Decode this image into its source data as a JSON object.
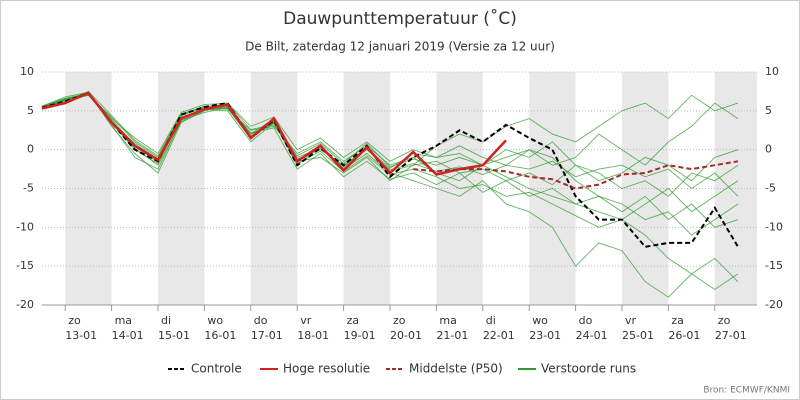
{
  "chart_data": {
    "type": "line",
    "title": "Dauwpunttemperatuur (˚C)",
    "subtitle": "De Bilt, zaterdag 12 januari 2019 (Versie za 12 uur)",
    "source": "Bron: ECMWF/KNMI",
    "categories": [
      null,
      "13-01",
      null,
      "14-01",
      null,
      "15-01",
      null,
      "16-01",
      null,
      "17-01",
      null,
      "18-01",
      null,
      "19-01",
      null,
      "20-01",
      null,
      "21-01",
      null,
      "22-01",
      null,
      "23-01",
      null,
      "24-01",
      null,
      "25-01",
      null,
      "26-01",
      null,
      "27-01",
      null
    ],
    "weekdays": [
      null,
      "zo",
      null,
      "ma",
      null,
      "di",
      null,
      "wo",
      null,
      "do",
      null,
      "vr",
      null,
      "za",
      null,
      "zo",
      null,
      "ma",
      null,
      "di",
      null,
      "wo",
      null,
      "do",
      null,
      "vr",
      null,
      "za",
      null,
      "zo",
      null
    ],
    "ylim": [
      -20,
      10
    ],
    "yticks": [
      -20,
      -15,
      -10,
      -5,
      0,
      5,
      10
    ],
    "grid": true,
    "legend": "bottom",
    "ensemble": {
      "name": "Verstoorde runs",
      "color": "#2f9a2f",
      "members": [
        [
          5.4,
          6.3,
          7.0,
          4.2,
          1.0,
          -1.0,
          4.5,
          5.6,
          5.2,
          2.5,
          3.0,
          -0.5,
          1.0,
          -1.5,
          0.5,
          -2.0,
          -1.0,
          -3.0,
          -4.0,
          -2.0,
          -3.5,
          -5.0,
          -6.0,
          -7.0,
          -8.0,
          -9.0,
          -11.0,
          -14.0,
          -16.0,
          -18.0,
          -16.0
        ],
        [
          5.6,
          6.8,
          7.4,
          3.0,
          -0.5,
          -3.0,
          3.5,
          5.0,
          5.8,
          2.0,
          4.0,
          -1.5,
          -1.0,
          -3.0,
          -1.0,
          -4.0,
          -2.0,
          0.5,
          2.0,
          1.0,
          3.0,
          4.0,
          2.0,
          1.0,
          3.0,
          5.0,
          6.0,
          4.0,
          7.0,
          5.0,
          6.0
        ],
        [
          5.3,
          6.0,
          7.1,
          3.5,
          0.0,
          -1.8,
          4.2,
          5.2,
          5.0,
          1.0,
          3.5,
          -2.0,
          0.5,
          -2.5,
          -0.5,
          -3.0,
          -4.0,
          -5.0,
          -6.0,
          -4.0,
          -7.0,
          -8.0,
          -10.0,
          -15.0,
          -12.0,
          -13.0,
          -17.0,
          -19.0,
          -16.0,
          -14.0,
          -17.0
        ],
        [
          5.5,
          6.5,
          7.2,
          4.0,
          1.5,
          -0.5,
          4.8,
          5.8,
          6.0,
          3.0,
          4.2,
          0.0,
          1.5,
          -1.0,
          1.0,
          -1.5,
          0.0,
          -1.0,
          -0.5,
          -2.0,
          -1.0,
          0.0,
          -2.0,
          -1.0,
          2.0,
          0.0,
          -2.0,
          1.0,
          3.0,
          6.0,
          4.0
        ],
        [
          5.4,
          6.4,
          7.3,
          3.2,
          -1.0,
          -2.5,
          3.8,
          4.8,
          5.4,
          2.2,
          2.8,
          -2.5,
          -0.5,
          -3.5,
          -1.5,
          -3.8,
          -3.0,
          -4.5,
          -3.0,
          -5.5,
          -4.0,
          -6.0,
          -5.0,
          -7.0,
          -6.0,
          -8.0,
          -6.0,
          -9.0,
          -7.0,
          -10.0,
          -9.0
        ],
        [
          5.6,
          6.6,
          7.0,
          3.6,
          0.8,
          -1.2,
          4.4,
          5.4,
          5.6,
          1.8,
          3.6,
          -1.0,
          0.2,
          -2.2,
          0.3,
          -2.8,
          -2.0,
          -1.5,
          -3.0,
          -2.5,
          -4.0,
          -3.0,
          -4.5,
          -2.0,
          -3.0,
          -5.0,
          -4.0,
          -6.0,
          -3.0,
          -4.0,
          -2.0
        ],
        [
          5.5,
          6.2,
          7.5,
          4.4,
          1.2,
          -0.8,
          4.6,
          5.5,
          5.9,
          2.6,
          3.2,
          -0.8,
          0.8,
          -1.8,
          0.8,
          -2.2,
          -1.2,
          -2.0,
          -1.0,
          -2.0,
          0.0,
          -1.0,
          1.0,
          -2.0,
          -4.0,
          -3.0,
          -1.0,
          -2.0,
          -4.0,
          -1.0,
          0.0
        ],
        [
          5.3,
          6.4,
          7.2,
          3.4,
          0.2,
          -2.0,
          3.6,
          5.1,
          5.3,
          1.4,
          3.8,
          -1.8,
          -0.2,
          -2.8,
          -0.8,
          -3.2,
          -2.5,
          -3.5,
          -5.0,
          -4.5,
          -6.0,
          -5.5,
          -7.0,
          -8.5,
          -10.0,
          -9.0,
          -7.0,
          -5.0,
          -8.0,
          -6.0,
          -4.0
        ],
        [
          5.5,
          6.6,
          7.3,
          3.9,
          0.6,
          -1.4,
          4.0,
          5.3,
          5.5,
          2.0,
          3.4,
          -1.2,
          0.0,
          -2.0,
          0.0,
          -2.6,
          -1.8,
          -2.8,
          -2.2,
          -3.2,
          -2.0,
          -2.5,
          -1.5,
          -3.5,
          -2.5,
          -2.0,
          -3.5,
          -2.5,
          -5.0,
          -3.0,
          -6.0
        ],
        [
          5.4,
          6.5,
          7.1,
          3.7,
          0.4,
          -1.6,
          4.1,
          5.2,
          5.4,
          1.6,
          3.6,
          -1.4,
          0.4,
          -2.4,
          0.2,
          -2.4,
          -0.5,
          -1.0,
          0.5,
          -1.0,
          -2.0,
          0.0,
          -1.0,
          -4.0,
          -6.0,
          -7.0,
          -9.0,
          -8.0,
          -11.0,
          -9.0,
          -7.0
        ]
      ]
    },
    "series": [
      {
        "name": "Controle",
        "color": "#000000",
        "dash": true,
        "width": 2,
        "values": [
          5.4,
          6.2,
          7.3,
          3.5,
          0.0,
          -1.5,
          4.5,
          5.5,
          6.0,
          1.5,
          3.8,
          -2.0,
          0.2,
          -2.0,
          0.5,
          -3.5,
          -1.0,
          0.5,
          2.5,
          1.0,
          3.2,
          1.5,
          0.0,
          -6.0,
          -9.0,
          -9.0,
          -12.5,
          -12.0,
          -12.0,
          -7.5,
          -12.5
        ]
      },
      {
        "name": "Hoge resolutie",
        "color": "#d42020",
        "dash": false,
        "width": 2.5,
        "values": [
          5.3,
          6.0,
          7.3,
          3.5,
          0.5,
          -1.3,
          4.0,
          5.2,
          5.8,
          1.5,
          4.0,
          -1.5,
          0.5,
          -2.7,
          0.3,
          -3.0,
          -0.3,
          -3.2,
          -2.5,
          -2.0,
          1.2,
          null,
          null,
          null,
          null,
          null,
          null,
          null,
          null,
          null,
          null
        ]
      },
      {
        "name": "Middelste (P50)",
        "color": "#a52a2a",
        "dash": true,
        "width": 2,
        "values": [
          null,
          null,
          null,
          null,
          null,
          null,
          null,
          null,
          null,
          null,
          null,
          null,
          null,
          null,
          null,
          null,
          -2.5,
          -2.8,
          -2.5,
          -2.5,
          -2.8,
          -3.5,
          -3.8,
          -5.0,
          -4.5,
          -3.2,
          -3.0,
          -2.0,
          -2.5,
          -2.0,
          -1.5
        ]
      }
    ]
  }
}
